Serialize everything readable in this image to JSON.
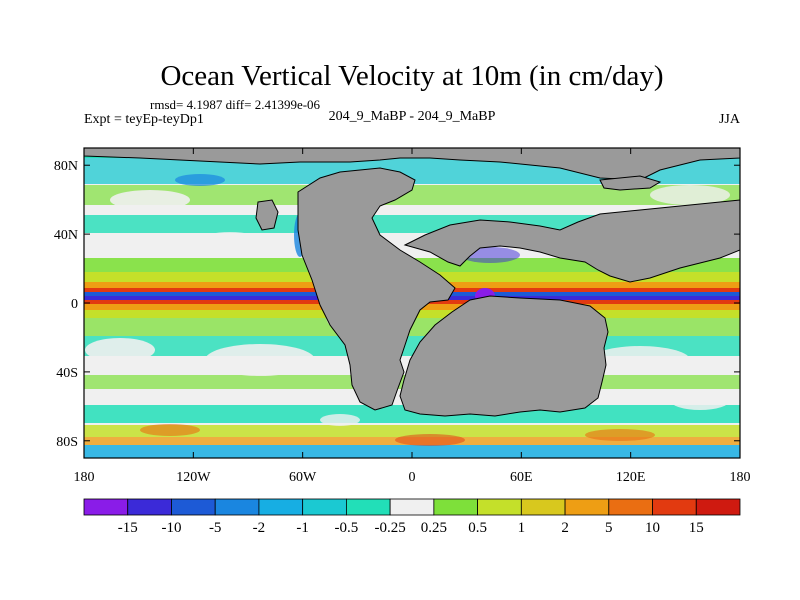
{
  "chart_data": {
    "type": "heatmap",
    "title": "Ocean Vertical Velocity at 10m (in cm/day)",
    "stats": "rmsd= 4.1987 diff= 2.41399e-06",
    "left_label": "Expt = teyEp-teyDp1",
    "center_label": "204_9_MaBP - 204_9_MaBP",
    "right_label": "JJA",
    "x_ticks": [
      "180",
      "120W",
      "60W",
      "0",
      "60E",
      "120E",
      "180"
    ],
    "y_ticks": [
      "80N",
      "40N",
      "0",
      "40S",
      "80S"
    ],
    "xlim": [
      -180,
      180
    ],
    "ylim": [
      -90,
      90
    ],
    "colorbar": {
      "levels": [
        "-15",
        "-10",
        "-5",
        "-2",
        "-1",
        "-0.5",
        "-0.25",
        "0.25",
        "0.5",
        "1",
        "2",
        "5",
        "10",
        "15"
      ],
      "colors": [
        "#8a1ce8",
        "#3b2ad8",
        "#1d5ad6",
        "#1a86e0",
        "#17aee3",
        "#1bc9d2",
        "#22dfb8",
        "#f0f0f0",
        "#7ee03a",
        "#c4e02a",
        "#d8c81e",
        "#ee9e14",
        "#ea6e12",
        "#e23a10",
        "#cf1a10"
      ]
    },
    "land_color": "#9a9a9a"
  }
}
